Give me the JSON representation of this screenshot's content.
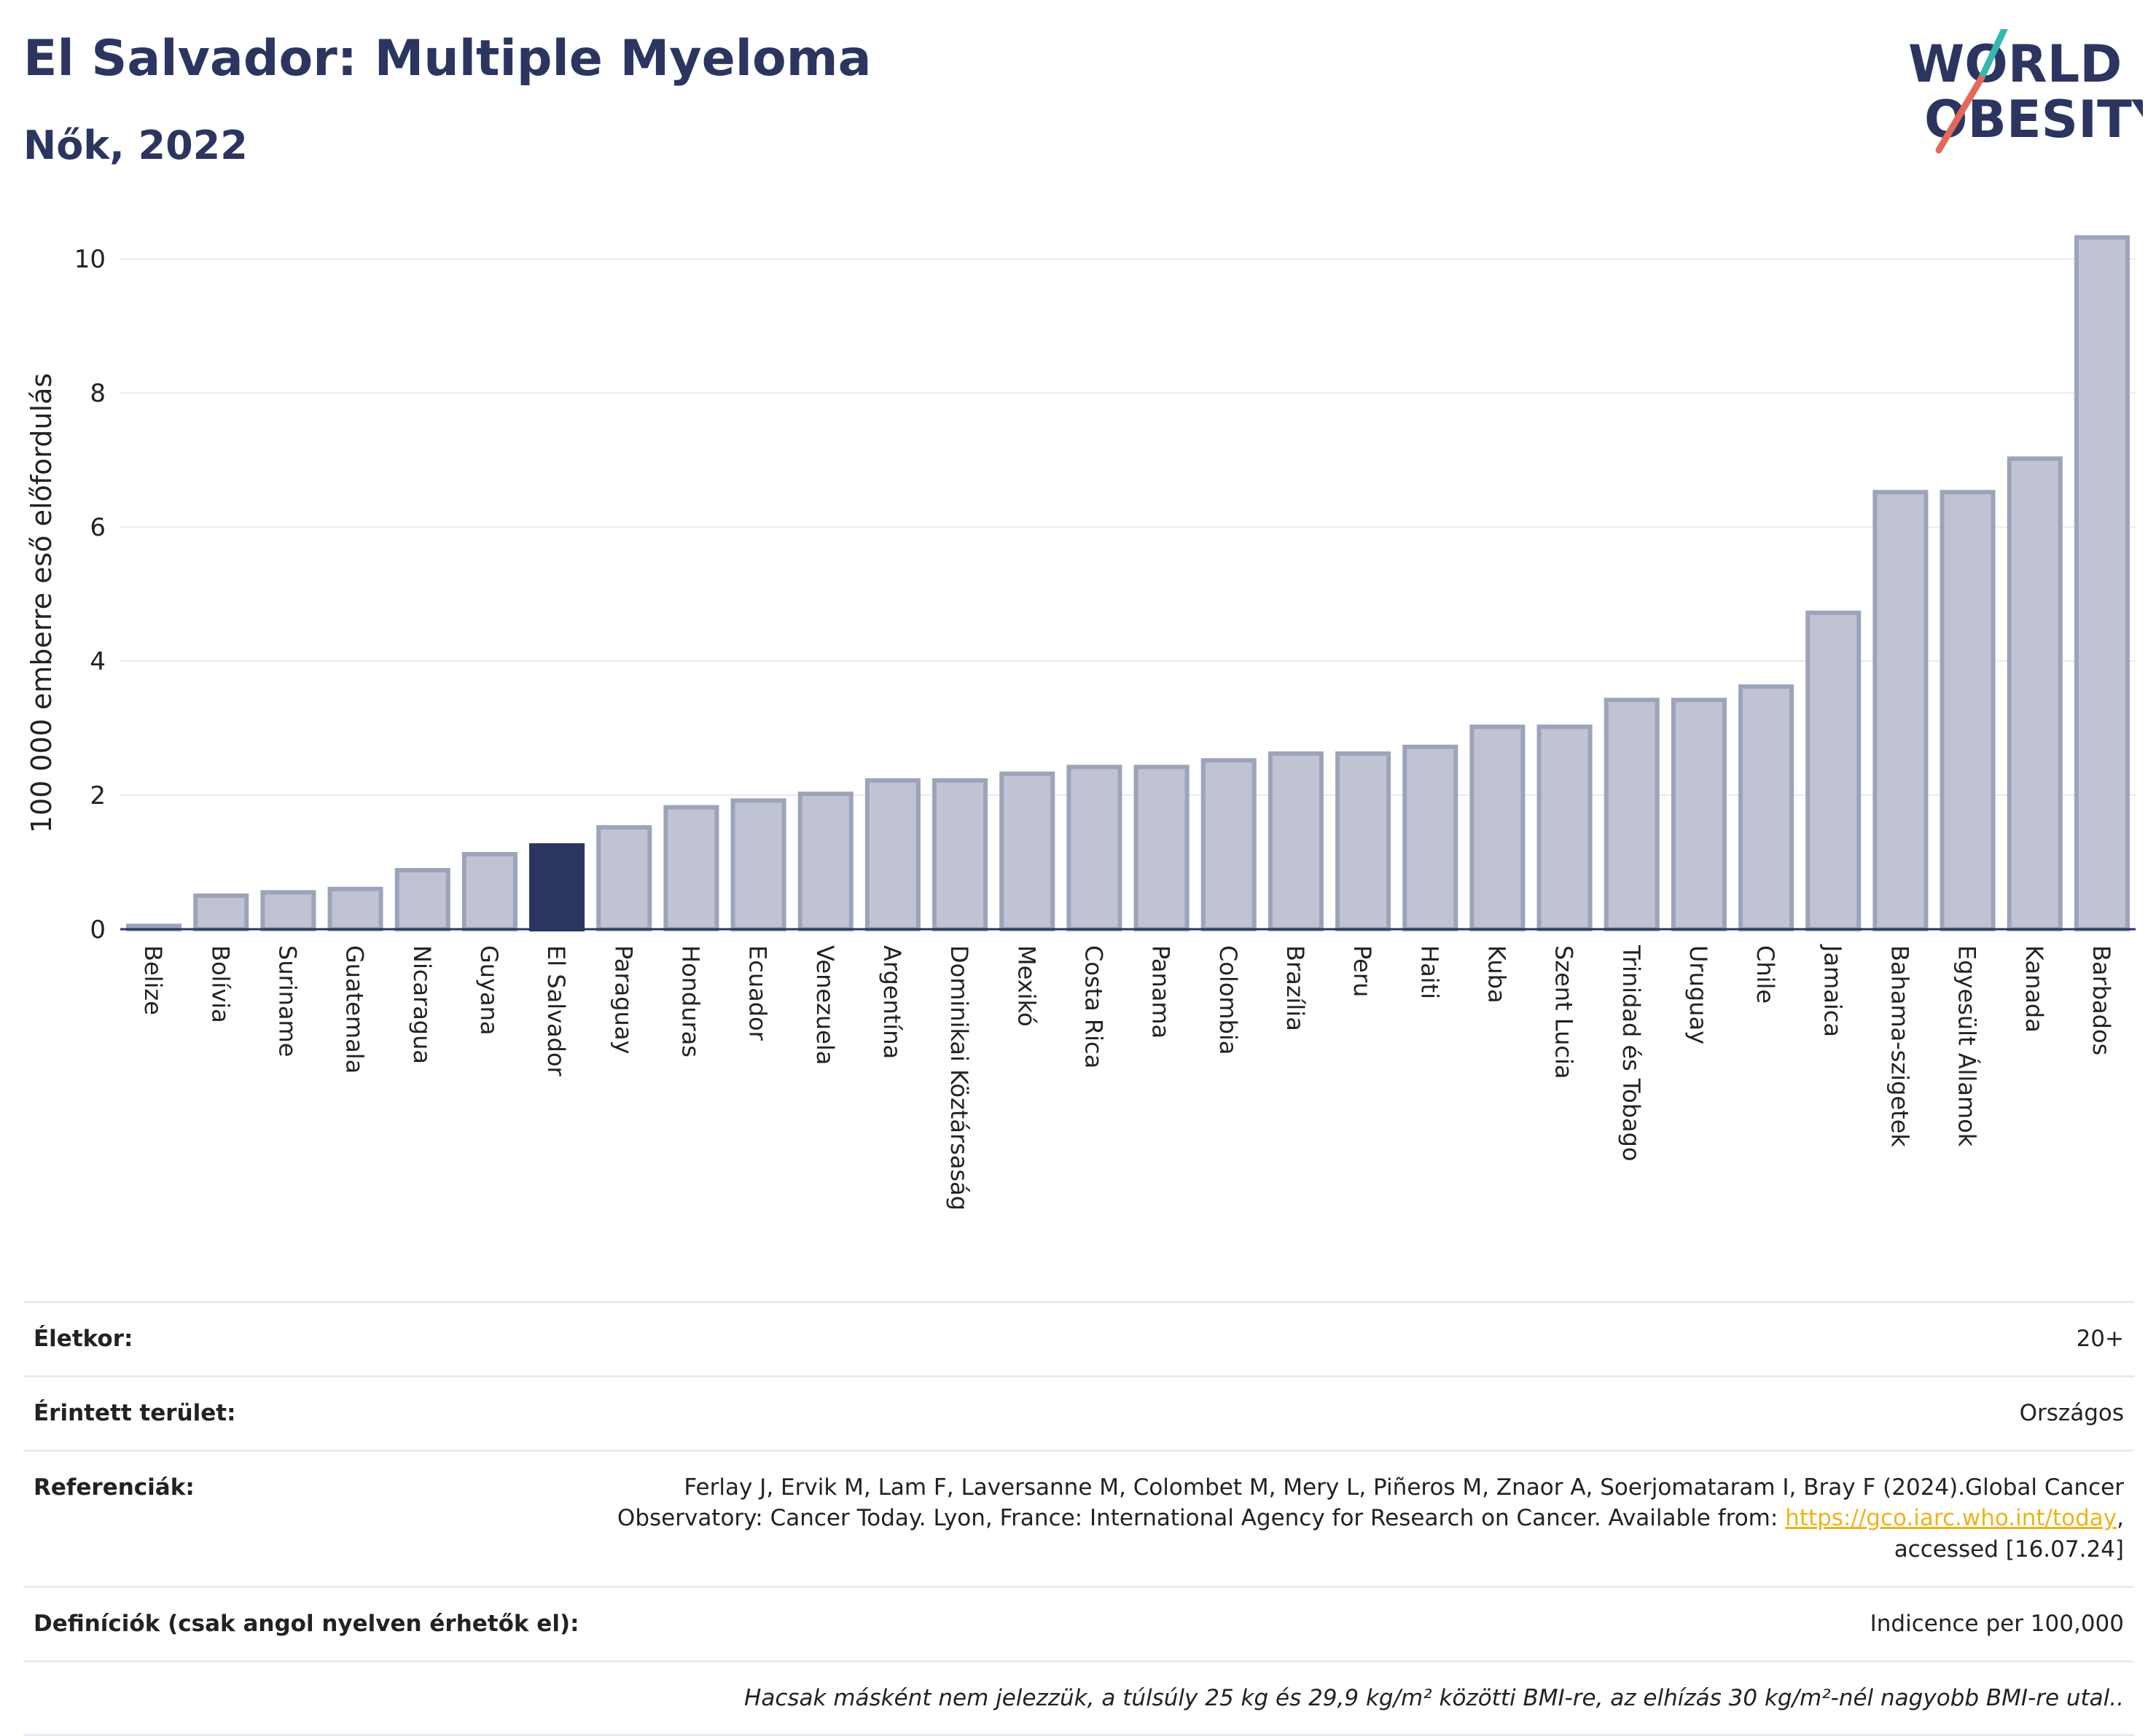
{
  "header": {
    "title": "El Salvador: Multiple Myeloma",
    "subtitle": "Nők, 2022"
  },
  "logo": {
    "line1": "WORLD",
    "line2": "OBESITY"
  },
  "colors": {
    "highlight": "#2b3560",
    "bar": "#c0c4d2",
    "bar_border": "#9da3b9",
    "title": "#2b3560",
    "link": "#f0b21a"
  },
  "chart_data": {
    "type": "bar",
    "ylabel": "100 000 emberre eső előfordulás",
    "ylim": [
      0,
      10.6
    ],
    "yticks": [
      0,
      2,
      4,
      6,
      8,
      10
    ],
    "grid": true,
    "highlight": "El Salvador",
    "categories": [
      "Belize",
      "Bolívia",
      "Suriname",
      "Guatemala",
      "Nicaragua",
      "Guyana",
      "El Salvador",
      "Paraguay",
      "Honduras",
      "Ecuador",
      "Venezuela",
      "Argentína",
      "Dominikai Köztársaság",
      "Mexikó",
      "Costa Rica",
      "Panama",
      "Colombia",
      "Brazília",
      "Peru",
      "Haiti",
      "Kuba",
      "Szent Lucia",
      "Trinidad és Tobago",
      "Uruguay",
      "Chile",
      "Jamaica",
      "Bahama-szigetek",
      "Egyesült Államok",
      "Kanada",
      "Barbados"
    ],
    "values": [
      0.05,
      0.5,
      0.55,
      0.6,
      0.88,
      1.12,
      1.25,
      1.52,
      1.82,
      1.92,
      2.02,
      2.22,
      2.22,
      2.32,
      2.42,
      2.42,
      2.52,
      2.62,
      2.62,
      2.72,
      3.02,
      3.02,
      3.42,
      3.42,
      3.62,
      4.72,
      6.52,
      6.52,
      7.02,
      10.32
    ]
  },
  "info": {
    "age_label": "Életkor:",
    "age_value": "20+",
    "area_label": "Érintett terület:",
    "area_value": "Országos",
    "ref_label": "Referenciák:",
    "ref_text_1": "Ferlay J, Ervik M, Lam F, Laversanne M, Colombet M, Mery L, Piñeros M, Znaor A, Soerjomataram I, Bray F (2024).Global Cancer",
    "ref_text_2": "Observatory: Cancer Today. Lyon, France: International Agency for Research on Cancer. Available from:",
    "ref_link": "https://gco.iarc.who.int/today",
    "ref_text_3": "accessed [16.07.24]",
    "def_label": "Definíciók (csak angol nyelven érhetők el):",
    "def_value": "Indicence per 100,000",
    "note": "Hacsak másként nem jelezzük, a túlsúly 25 kg és 29,9 kg/m² közötti BMI-re, az elhízás 30 kg/m²-nél nagyobb BMI-re utal.."
  }
}
